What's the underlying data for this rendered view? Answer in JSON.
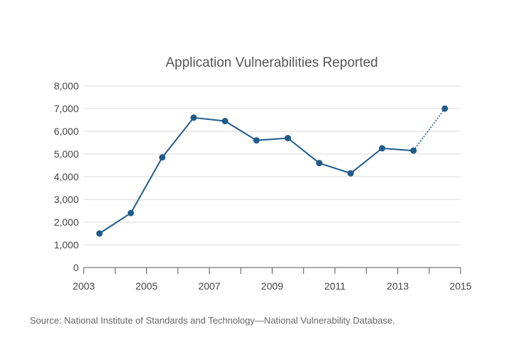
{
  "chart_data": {
    "type": "line",
    "title": "Application Vulnerabilities Reported",
    "xlabel": "",
    "ylabel": "",
    "x_ticks": [
      "2003",
      "2005",
      "2007",
      "2009",
      "2011",
      "2013",
      "2015"
    ],
    "y_ticks": [
      "0",
      "1,000",
      "2,000",
      "3,000",
      "4,000",
      "5,000",
      "6,000",
      "7,000",
      "8,000"
    ],
    "xlim": [
      2003,
      2015
    ],
    "ylim": [
      0,
      8000
    ],
    "grid": true,
    "color": "#1f5b8a",
    "series": [
      {
        "x": [
          2003.5,
          2004.5,
          2005.5,
          2006.5,
          2007.5,
          2008.5,
          2009.5,
          2010.5,
          2011.5,
          2012.5,
          2013.5,
          2014.5
        ],
        "values": [
          1500,
          2400,
          4850,
          6600,
          6450,
          5600,
          5700,
          4600,
          4150,
          5250,
          5150,
          7000
        ],
        "projected_last_segment": true
      }
    ]
  },
  "source": "Source: National Institute of Standards and Technology—National Vulnerability Database."
}
